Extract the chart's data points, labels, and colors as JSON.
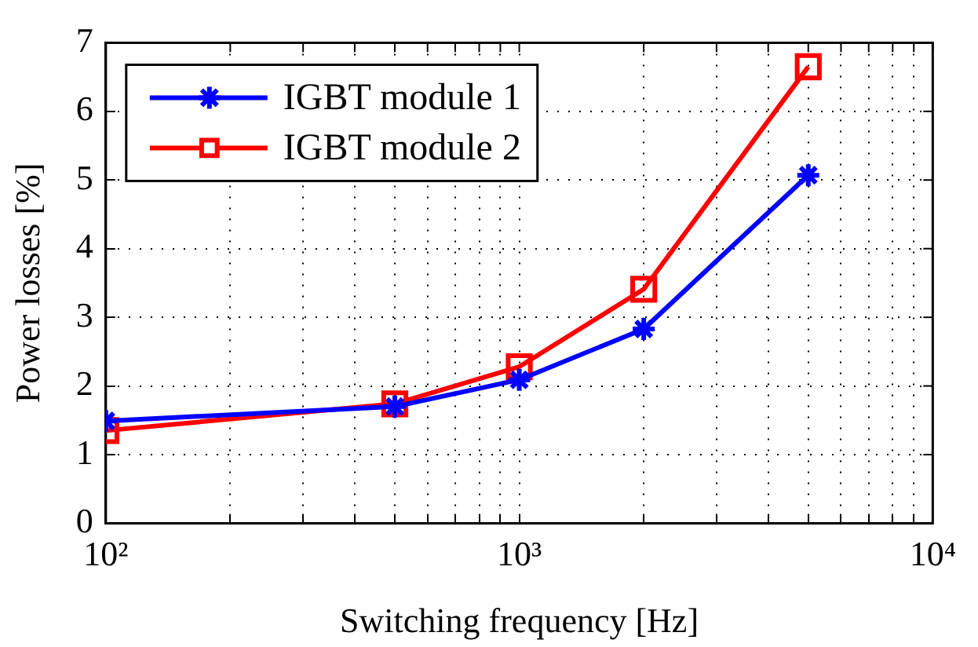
{
  "chart_data": {
    "type": "line",
    "xlabel": "Switching frequency [Hz]",
    "ylabel": "Power losses [%]",
    "x": [
      100,
      500,
      1000,
      2000,
      5000
    ],
    "series": [
      {
        "name": "IGBT module 1",
        "color": "#0000ff",
        "values": [
          1.49,
          1.7,
          2.09,
          2.83,
          5.07
        ],
        "marker": "cross"
      },
      {
        "name": "IGBT module 2",
        "color": "#ff0000",
        "values": [
          1.35,
          1.74,
          2.28,
          3.41,
          6.65
        ],
        "marker": "square"
      }
    ],
    "log": "x",
    "xlim": [
      100,
      10000
    ],
    "xticks": [
      {
        "value": 100,
        "label": "10²"
      },
      {
        "value": 200,
        "label": null
      },
      {
        "value": 300,
        "label": null
      },
      {
        "value": 400,
        "label": null
      },
      {
        "value": 500,
        "label": null
      },
      {
        "value": 600,
        "label": null
      },
      {
        "value": 700,
        "label": null
      },
      {
        "value": 800,
        "label": null
      },
      {
        "value": 900,
        "label": null
      },
      {
        "value": 1000,
        "label": "10³"
      },
      {
        "value": 2000,
        "label": null
      },
      {
        "value": 3000,
        "label": null
      },
      {
        "value": 4000,
        "label": null
      },
      {
        "value": 5000,
        "label": null
      },
      {
        "value": 6000,
        "label": null
      },
      {
        "value": 7000,
        "label": null
      },
      {
        "value": 8000,
        "label": null
      },
      {
        "value": 9000,
        "label": null
      },
      {
        "value": 10000,
        "label": "10⁴"
      }
    ],
    "ylim": [
      0,
      7
    ],
    "yticks": [
      0,
      1,
      2,
      3,
      4,
      5,
      6,
      7
    ],
    "grid": true,
    "legend": "top left",
    "line_style": "solid"
  }
}
